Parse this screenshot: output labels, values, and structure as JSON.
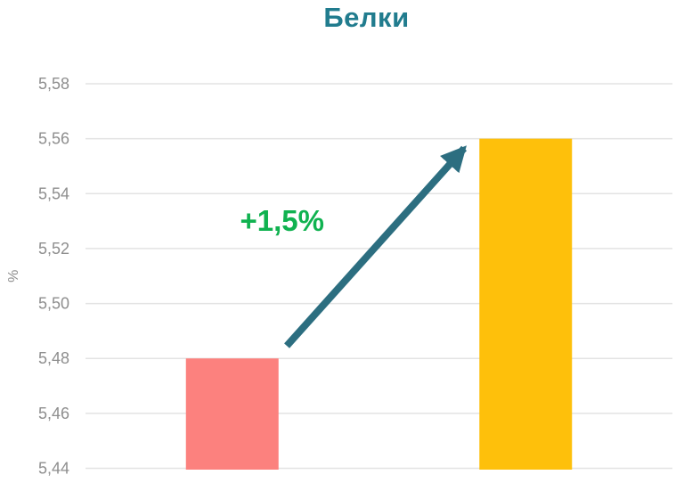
{
  "chart_data": {
    "type": "bar",
    "title": "Белки",
    "title_color": "#217C8E",
    "ylabel": "%",
    "ylim": [
      5.44,
      5.58
    ],
    "ytick_step": 0.02,
    "decimal_separator": ",",
    "categories": [
      "",
      ""
    ],
    "values": [
      5.48,
      5.56
    ],
    "bar_colors": [
      "#FC817E",
      "#FEC00B"
    ],
    "grid": true,
    "grid_color": "#E3E3E3",
    "tick_color": "#8E8E8E",
    "legend": "none",
    "annotation": {
      "text": "+1,5%",
      "color": "#10B250",
      "x_frac": 0.335,
      "value": 5.53
    },
    "arrow": {
      "color": "#2C6E80",
      "stroke_width": 8,
      "from": {
        "x_frac": 0.343,
        "value": 5.4846
      },
      "to": {
        "x_frac": 0.645,
        "value": 5.5565
      }
    }
  }
}
